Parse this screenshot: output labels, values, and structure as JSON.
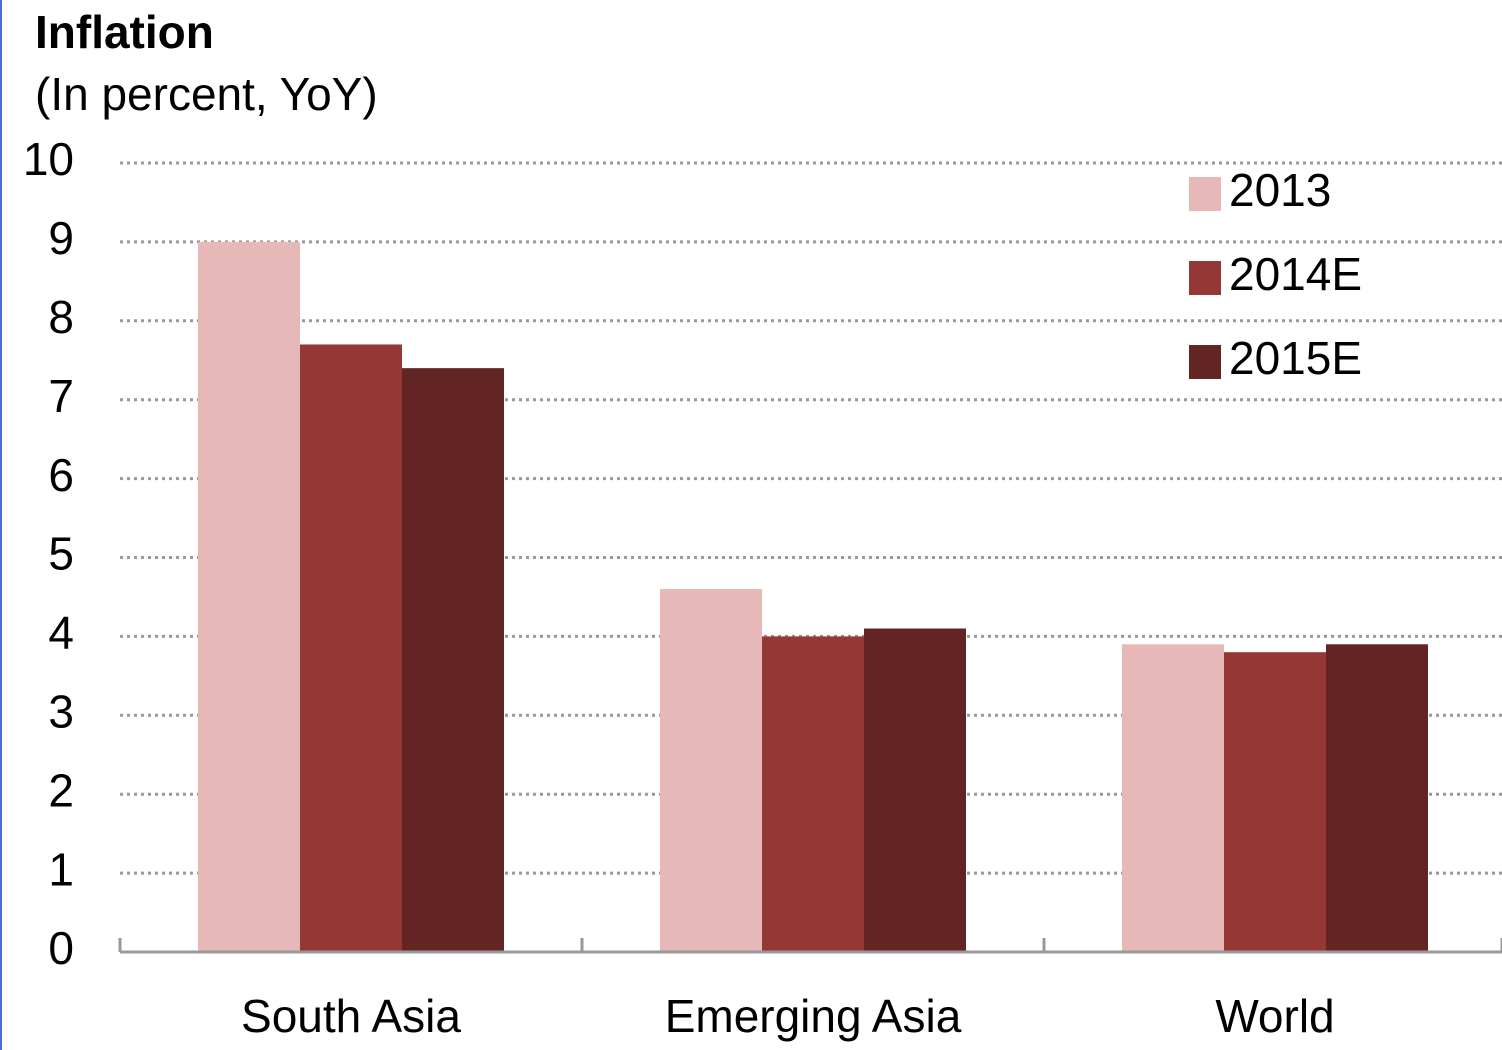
{
  "chart_data": {
    "type": "bar",
    "title": "Inflation",
    "subtitle": "(In percent, YoY)",
    "categories": [
      "South Asia",
      "Emerging Asia",
      "World"
    ],
    "series": [
      {
        "name": "2013",
        "color": "#e6b8b7",
        "values": [
          9.0,
          4.6,
          3.9
        ]
      },
      {
        "name": "2014E",
        "color": "#953735",
        "values": [
          7.7,
          4.0,
          3.8
        ]
      },
      {
        "name": "2015E",
        "color": "#632523",
        "values": [
          7.4,
          4.1,
          3.9
        ]
      }
    ],
    "ylim": [
      0,
      10
    ],
    "yticks": [
      0,
      1,
      2,
      3,
      4,
      5,
      6,
      7,
      8,
      9,
      10
    ],
    "grid": true,
    "legend": "top-right"
  }
}
